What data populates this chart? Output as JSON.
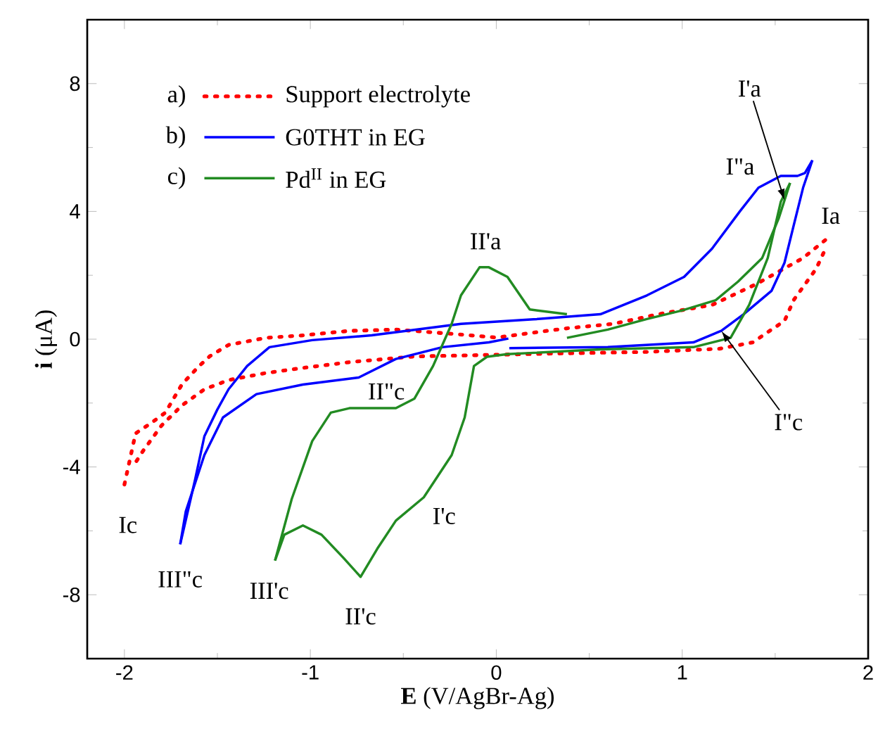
{
  "chart_data": {
    "type": "line",
    "xlabel": "**E** (V/AgBr-Ag)",
    "ylabel": "**i** (μA)",
    "xlim": [
      -2.2,
      2.0
    ],
    "ylim": [
      -10,
      10
    ],
    "xticks": [
      -2,
      -1,
      0,
      1,
      2
    ],
    "yticks": [
      -8,
      -4,
      0,
      4,
      8
    ],
    "legend": "top left",
    "series": [
      {
        "name": "Support electrolyte",
        "color": "#ff0000",
        "line_style": "dotted",
        "x": [
          -2.0,
          -1.94,
          -1.85,
          -1.78,
          -1.69,
          -1.6,
          -1.54,
          -1.44,
          -1.24,
          -1.04,
          -0.79,
          -0.54,
          -0.2,
          0.0,
          0.18,
          0.38,
          0.63,
          0.88,
          1.16,
          1.4,
          1.65,
          1.79
        ],
        "values": [
          -4.55,
          -2.95,
          -2.6,
          -2.3,
          -1.41,
          -0.85,
          -0.53,
          -0.18,
          0.04,
          0.12,
          0.26,
          0.3,
          0.15,
          0.05,
          0.19,
          0.34,
          0.48,
          0.79,
          1.07,
          1.73,
          2.54,
          3.2
        ]
      },
      {
        "color": "#ff0000",
        "line_style": "dotted",
        "x": [
          1.76,
          1.72,
          1.6,
          1.55,
          1.47,
          1.38,
          1.2,
          0.8,
          0.3,
          -0.1,
          -0.44,
          -0.79,
          -1.04,
          -1.24,
          -1.44,
          -1.57,
          -1.69,
          -1.8,
          -1.9,
          -1.95
        ],
        "values": [
          2.7,
          2.2,
          1.23,
          0.57,
          0.26,
          -0.1,
          -0.3,
          -0.4,
          -0.45,
          -0.5,
          -0.54,
          -0.72,
          -0.9,
          -1.06,
          -1.28,
          -1.57,
          -2.07,
          -2.7,
          -3.5,
          -3.95
        ]
      },
      {
        "name": "G0THT in EG",
        "color": "#0000ff",
        "line_style": "solid",
        "x": [
          -1.7,
          -1.62,
          -1.57,
          -1.5,
          -1.44,
          -1.34,
          -1.22,
          -0.99,
          -0.67,
          -0.19,
          0.2,
          0.56,
          0.81,
          1.01,
          1.16,
          1.31,
          1.41,
          1.53,
          1.62,
          1.66,
          1.7
        ],
        "values": [
          -6.42,
          -4.4,
          -3.04,
          -2.2,
          -1.57,
          -0.84,
          -0.25,
          -0.03,
          0.12,
          0.48,
          0.62,
          0.78,
          1.37,
          1.95,
          2.83,
          4.0,
          4.74,
          5.11,
          5.11,
          5.2,
          5.6
        ]
      },
      {
        "color": "#0000ff",
        "line_style": "solid",
        "x": [
          1.7,
          1.65,
          1.6,
          1.55,
          1.48,
          1.33,
          1.21,
          1.06,
          0.6,
          0.07
        ],
        "values": [
          5.6,
          4.74,
          3.57,
          2.39,
          1.51,
          0.78,
          0.26,
          -0.1,
          -0.25,
          -0.28
        ]
      },
      {
        "color": "#0000ff",
        "line_style": "solid",
        "x": [
          0.065,
          -0.04,
          -0.29,
          -0.54,
          -0.74,
          -1.04,
          -1.29,
          -1.47,
          -1.57,
          -1.67,
          -1.7
        ],
        "values": [
          0.02,
          -0.1,
          -0.25,
          -0.62,
          -1.2,
          -1.42,
          -1.72,
          -2.45,
          -3.63,
          -5.39,
          -6.42
        ]
      },
      {
        "name": "Pd$^{II}$ in EG",
        "color": "#228b22",
        "line_style": "solid",
        "x": [
          -1.19,
          -1.1,
          -0.99,
          -0.89,
          -0.79,
          -0.54,
          -0.44,
          -0.34,
          -0.24,
          -0.19,
          -0.09,
          -0.04,
          0.06,
          0.18,
          0.38
        ],
        "values": [
          -6.93,
          -5.0,
          -3.19,
          -2.3,
          -2.16,
          -2.16,
          -1.86,
          -0.84,
          0.48,
          1.37,
          2.25,
          2.25,
          1.95,
          0.93,
          0.78
        ]
      },
      {
        "color": "#228b22",
        "line_style": "solid",
        "x": [
          0.38,
          0.6,
          0.81,
          1.0,
          1.18,
          1.3,
          1.43,
          1.52,
          1.58
        ],
        "values": [
          0.04,
          0.3,
          0.63,
          0.9,
          1.22,
          1.8,
          2.54,
          3.8,
          4.89
        ]
      },
      {
        "color": "#228b22",
        "line_style": "solid",
        "x": [
          1.58,
          1.53,
          1.46,
          1.36,
          1.26,
          1.06,
          0.56,
          0.06,
          -0.05,
          -0.12,
          -0.17,
          -0.24,
          -0.39,
          -0.54,
          -0.64,
          -0.73,
          -0.82,
          -0.94,
          -1.04,
          -1.14,
          -1.19
        ],
        "values": [
          4.89,
          4.3,
          2.54,
          1.07,
          0.04,
          -0.25,
          -0.32,
          -0.47,
          -0.55,
          -0.84,
          -2.45,
          -3.63,
          -4.95,
          -5.68,
          -6.56,
          -7.44,
          -6.86,
          -6.12,
          -5.83,
          -6.12,
          -6.93
        ]
      }
    ],
    "annotations": [
      {
        "text": "I'a",
        "x": 1.55,
        "y": 4.35
      },
      "I\"a",
      "Ia",
      "II'a",
      "II\"c",
      "I'c",
      "Ic",
      "III\"c",
      "III'c",
      "II'c",
      {
        "text": "I\"c",
        "x": 1.21,
        "y": 0.26
      },
      "a)",
      "b)",
      "c)"
    ]
  }
}
